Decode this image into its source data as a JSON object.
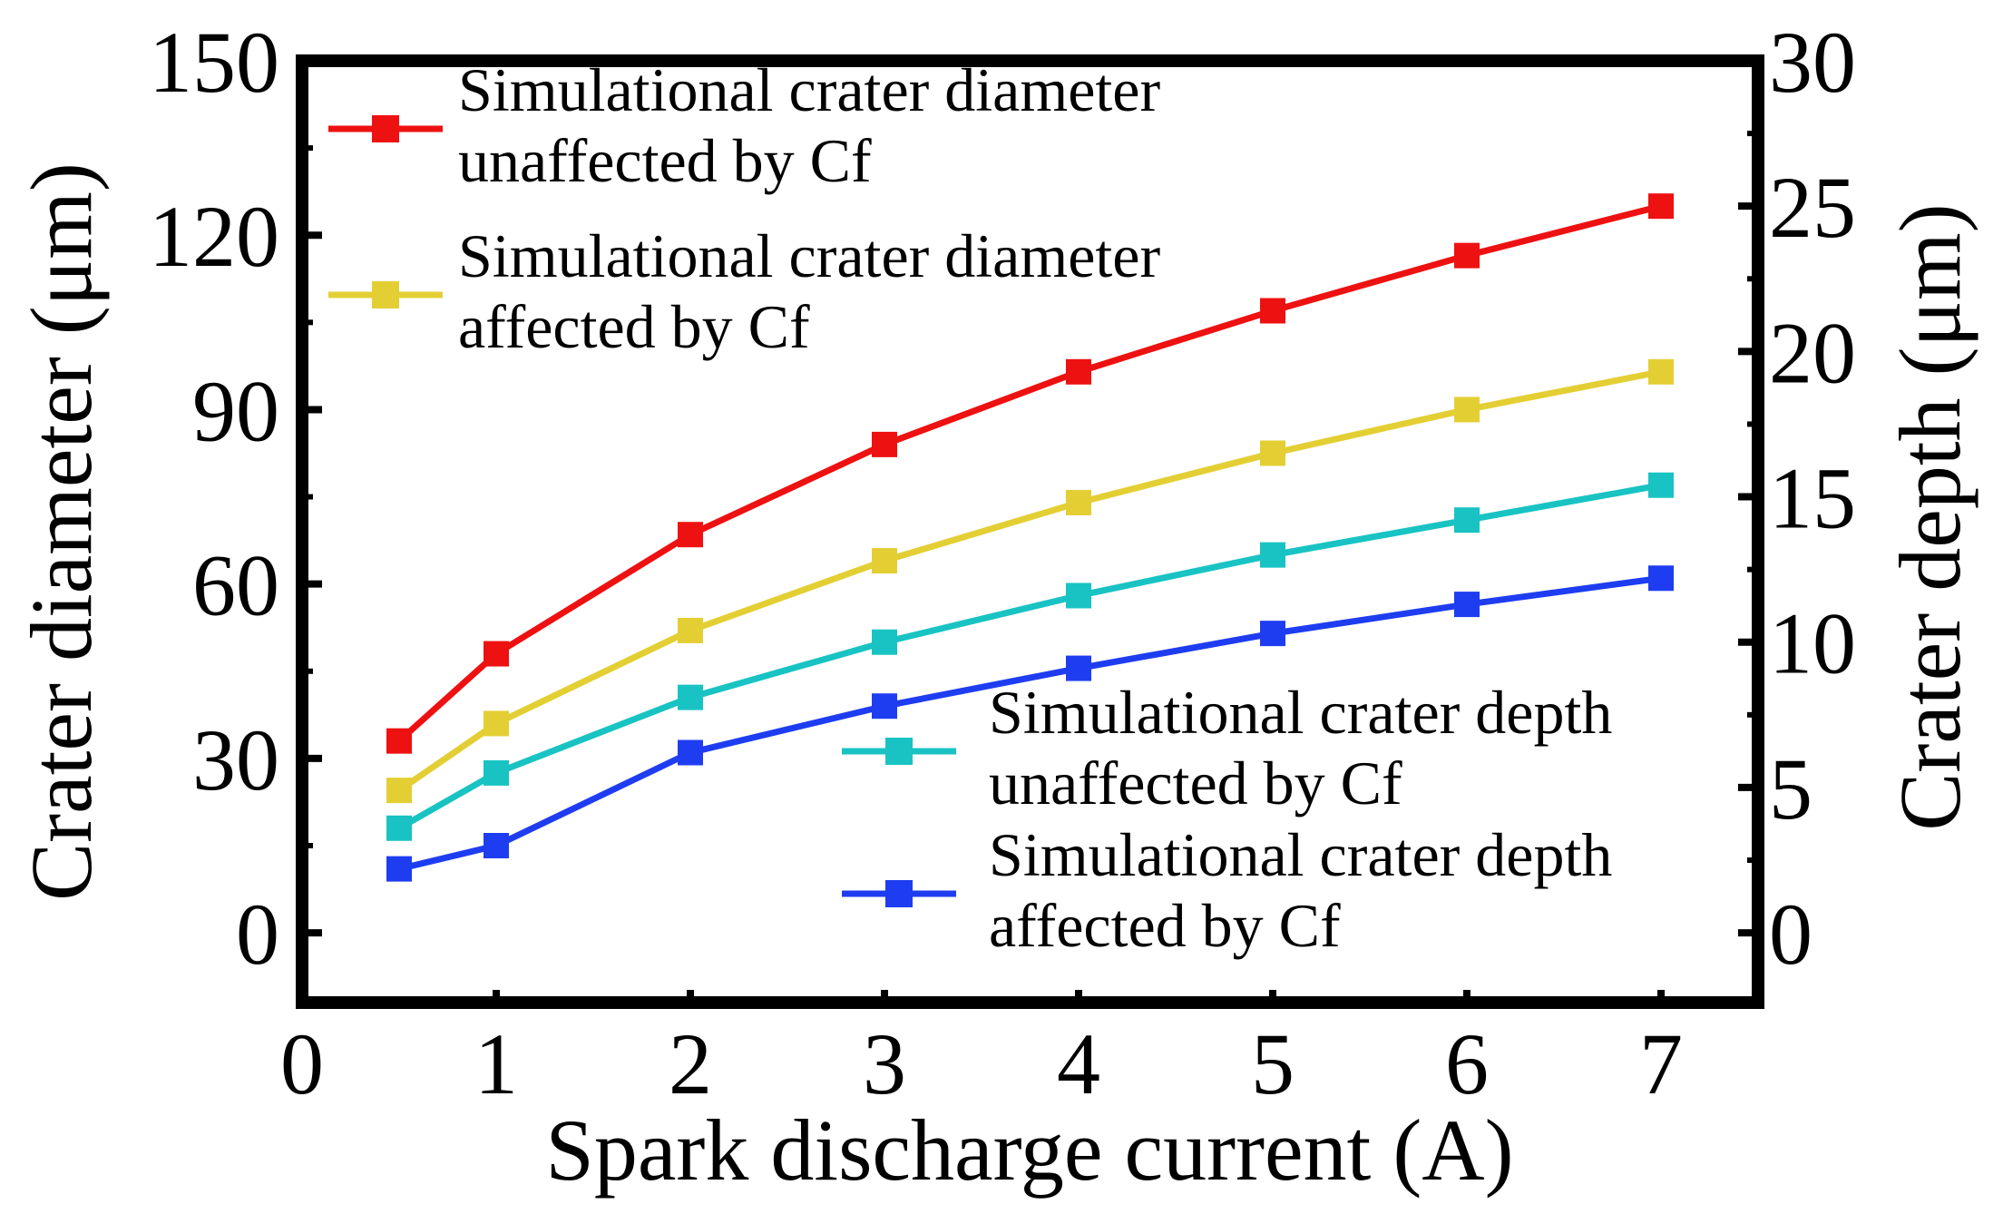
{
  "chart_data": {
    "type": "line",
    "xlabel": "Spark discharge current (A)",
    "ylabel": "Crater diameter (μm)",
    "y2label": "Crater depth (μm)",
    "xlim": [
      0,
      7.5
    ],
    "ylim": [
      -12,
      150
    ],
    "y2lim": [
      -2.4,
      30
    ],
    "x_ticks": [
      0,
      1,
      2,
      3,
      4,
      5,
      6,
      7
    ],
    "y_ticks": [
      0,
      30,
      60,
      90,
      120,
      150
    ],
    "y2_ticks": [
      0,
      5,
      10,
      15,
      20,
      25,
      30
    ],
    "x": [
      0.5,
      1,
      2,
      3,
      4,
      5,
      6,
      7
    ],
    "series": [
      {
        "name": "Simulational crater diameter unaffected by Cf",
        "legend_lines": [
          "Simulational crater diameter",
          "unaffected by Cf"
        ],
        "axis": "left",
        "color": "#ee1111",
        "values": [
          33,
          48,
          68.5,
          84,
          96.5,
          107,
          116.5,
          125
        ]
      },
      {
        "name": "Simulational crater diameter affected by Cf",
        "legend_lines": [
          "Simulational crater diameter",
          "affected by Cf"
        ],
        "axis": "left",
        "color": "#e3cf34",
        "values": [
          24.5,
          36,
          52,
          64,
          74,
          82.5,
          90,
          96.5
        ]
      },
      {
        "name": "Simulational crater depth unaffected by Cf",
        "legend_lines": [
          "Simulational crater depth",
          "unaffected by Cf"
        ],
        "axis": "right",
        "color": "#19c3c3",
        "values": [
          3.6,
          5.5,
          8.1,
          10.0,
          11.6,
          13.0,
          14.2,
          15.4
        ]
      },
      {
        "name": "Simulational crater depth affected by Cf",
        "legend_lines": [
          "Simulational crater depth",
          "affected by Cf"
        ],
        "axis": "right",
        "color": "#1f3df0",
        "values": [
          2.2,
          3.0,
          6.2,
          7.8,
          9.1,
          10.3,
          11.3,
          12.2
        ]
      }
    ],
    "legend": [
      {
        "position": "top-left",
        "series": [
          0,
          1
        ]
      },
      {
        "position": "bottom-right",
        "series": [
          2,
          3
        ]
      }
    ],
    "grid": false
  }
}
